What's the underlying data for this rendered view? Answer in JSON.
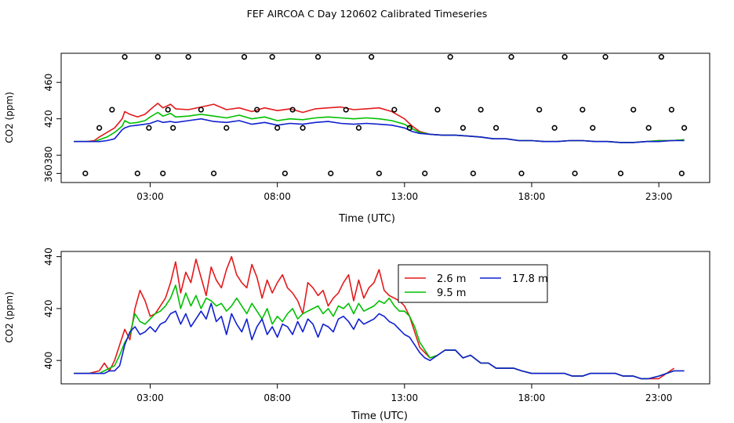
{
  "figure": {
    "title": "FEF AIRCOA C  Day 120602  Calibrated Timeseries"
  },
  "colors": {
    "s1": "#e41a1c",
    "s2": "#00c000",
    "s3": "#1020d0",
    "axis": "#000000"
  },
  "chart_data": [
    {
      "type": "line",
      "title": "",
      "xlabel": "Time (UTC)",
      "ylabel": "CO2 (ppm)",
      "xlim": [
        -0.5,
        25
      ],
      "ylim": [
        350,
        492
      ],
      "xticks": [
        3,
        8,
        13,
        18,
        23
      ],
      "xticklabels": [
        "03:00",
        "08:00",
        "13:00",
        "18:00",
        "23:00"
      ],
      "yticks": [
        360,
        380,
        420,
        460
      ],
      "yticklabels": [
        "360",
        "380",
        "420",
        "460"
      ],
      "grid": false,
      "legend": "none",
      "series": [
        {
          "color": "#e41a1c",
          "x": [
            0,
            0.5,
            0.8,
            1.0,
            1.3,
            1.6,
            1.9,
            2.0,
            2.2,
            2.5,
            2.8,
            3.0,
            3.3,
            3.5,
            3.8,
            4.0,
            4.5,
            5.0,
            5.5,
            6.0,
            6.5,
            7.0,
            7.5,
            8.0,
            8.5,
            9.0,
            9.5,
            10.0,
            10.5,
            11.0,
            11.5,
            12.0,
            12.5,
            13.0,
            13.3,
            13.6,
            14.0,
            14.5,
            15.0,
            15.5,
            16.0,
            16.5,
            17.0,
            17.5,
            18.0,
            18.5,
            19.0,
            19.5,
            20.0,
            20.5,
            21.0,
            21.5,
            22.0,
            22.5,
            23.0,
            23.5,
            24.0
          ],
          "y": [
            395,
            395,
            396,
            400,
            405,
            410,
            420,
            428,
            425,
            422,
            425,
            430,
            437,
            432,
            436,
            431,
            430,
            433,
            436,
            430,
            432,
            428,
            432,
            429,
            431,
            427,
            431,
            432,
            433,
            430,
            431,
            432,
            428,
            420,
            412,
            406,
            403,
            402,
            402,
            401,
            400,
            398,
            398,
            396,
            396,
            395,
            395,
            396,
            396,
            395,
            395,
            394,
            394,
            395,
            396,
            396,
            397
          ]
        },
        {
          "color": "#00c000",
          "x": [
            0,
            0.5,
            0.8,
            1.0,
            1.3,
            1.6,
            1.9,
            2.0,
            2.2,
            2.5,
            2.8,
            3.0,
            3.3,
            3.5,
            3.8,
            4.0,
            4.5,
            5.0,
            5.5,
            6.0,
            6.5,
            7.0,
            7.5,
            8.0,
            8.5,
            9.0,
            9.5,
            10.0,
            10.5,
            11.0,
            11.5,
            12.0,
            12.5,
            13.0,
            13.3,
            13.6,
            14.0,
            14.5,
            15.0,
            15.5,
            16.0,
            16.5,
            17.0,
            17.5,
            18.0,
            18.5,
            19.0,
            19.5,
            20.0,
            20.5,
            21.0,
            21.5,
            22.0,
            22.5,
            23.0,
            23.5,
            24.0
          ],
          "y": [
            395,
            395,
            395,
            397,
            400,
            405,
            412,
            418,
            415,
            416,
            418,
            422,
            427,
            423,
            426,
            422,
            423,
            425,
            423,
            421,
            424,
            420,
            422,
            418,
            420,
            419,
            421,
            422,
            421,
            420,
            421,
            420,
            418,
            414,
            409,
            405,
            403,
            402,
            402,
            401,
            400,
            398,
            398,
            396,
            396,
            395,
            395,
            396,
            396,
            395,
            395,
            394,
            394,
            395,
            396,
            396,
            397
          ]
        },
        {
          "color": "#1020d0",
          "x": [
            0,
            0.5,
            0.8,
            1.0,
            1.3,
            1.6,
            1.9,
            2.0,
            2.2,
            2.5,
            2.8,
            3.0,
            3.3,
            3.5,
            3.8,
            4.0,
            4.5,
            5.0,
            5.5,
            6.0,
            6.5,
            7.0,
            7.5,
            8.0,
            8.5,
            9.0,
            9.5,
            10.0,
            10.5,
            11.0,
            11.5,
            12.0,
            12.5,
            13.0,
            13.3,
            13.6,
            14.0,
            14.5,
            15.0,
            15.5,
            16.0,
            16.5,
            17.0,
            17.5,
            18.0,
            18.5,
            19.0,
            19.5,
            20.0,
            20.5,
            21.0,
            21.5,
            22.0,
            22.5,
            23.0,
            23.5,
            24.0
          ],
          "y": [
            395,
            395,
            395,
            395,
            396,
            398,
            408,
            410,
            412,
            413,
            414,
            415,
            418,
            416,
            417,
            416,
            418,
            420,
            417,
            416,
            418,
            414,
            416,
            413,
            415,
            414,
            416,
            417,
            415,
            414,
            415,
            414,
            413,
            410,
            406,
            404,
            403,
            402,
            402,
            401,
            400,
            398,
            398,
            396,
            396,
            395,
            395,
            396,
            396,
            395,
            395,
            394,
            394,
            395,
            395,
            396,
            396
          ]
        }
      ],
      "flag_points": {
        "x": [
          0.45,
          1.0,
          1.5,
          2.0,
          2.5,
          2.95,
          3.3,
          3.5,
          3.7,
          3.9,
          4.5,
          5.0,
          5.5,
          6.0,
          6.7,
          7.2,
          7.8,
          8.0,
          8.3,
          8.6,
          9.0,
          9.6,
          10.1,
          10.7,
          11.2,
          11.7,
          12.0,
          12.6,
          13.2,
          13.8,
          14.3,
          14.8,
          15.3,
          15.7,
          16.0,
          16.6,
          17.2,
          17.6,
          18.3,
          18.9,
          19.3,
          19.7,
          20.0,
          20.4,
          20.9,
          21.5,
          22.0,
          22.6,
          23.1,
          23.5,
          23.9,
          24.0
        ],
        "y": [
          360,
          410,
          430,
          488,
          360,
          410,
          488,
          360,
          430,
          410,
          488,
          430,
          360,
          410,
          488,
          430,
          488,
          410,
          360,
          430,
          410,
          488,
          360,
          430,
          410,
          488,
          360,
          430,
          410,
          360,
          430,
          488,
          410,
          360,
          430,
          410,
          488,
          360,
          430,
          410,
          488,
          360,
          430,
          410,
          488,
          360,
          430,
          410,
          488,
          430,
          360,
          410
        ]
      }
    },
    {
      "type": "line",
      "title": "",
      "xlabel": "Time (UTC)",
      "ylabel": "CO2 (ppm)",
      "xlim": [
        -0.5,
        25
      ],
      "ylim": [
        391,
        442
      ],
      "xticks": [
        3,
        8,
        13,
        18,
        23
      ],
      "xticklabels": [
        "03:00",
        "08:00",
        "13:00",
        "18:00",
        "23:00"
      ],
      "yticks": [
        400,
        420,
        440
      ],
      "yticklabels": [
        "400",
        "420",
        "440"
      ],
      "grid": false,
      "legend": "top-center",
      "series": [
        {
          "name": "2.6 m",
          "color": "#e41a1c",
          "x": [
            0,
            0.6,
            1.0,
            1.2,
            1.4,
            1.6,
            1.8,
            2.0,
            2.2,
            2.4,
            2.6,
            2.8,
            3.0,
            3.2,
            3.4,
            3.6,
            3.8,
            4.0,
            4.2,
            4.4,
            4.6,
            4.8,
            5.0,
            5.2,
            5.4,
            5.6,
            5.8,
            6.0,
            6.2,
            6.4,
            6.6,
            6.8,
            7.0,
            7.2,
            7.4,
            7.6,
            7.8,
            8.0,
            8.2,
            8.4,
            8.6,
            8.8,
            9.0,
            9.2,
            9.4,
            9.6,
            9.8,
            10.0,
            10.2,
            10.4,
            10.6,
            10.8,
            11.0,
            11.2,
            11.4,
            11.6,
            11.8,
            12.0,
            12.2,
            12.4,
            12.6,
            12.8,
            13.0,
            13.2,
            13.4,
            13.6,
            13.8,
            14.0,
            14.3,
            14.6,
            15.0,
            15.3,
            15.6,
            16.0,
            16.3,
            16.6,
            17.0,
            17.3,
            17.6,
            18.0,
            18.3,
            18.6,
            19.0,
            19.3,
            19.6,
            20.0,
            20.3,
            20.6,
            21.0,
            21.3,
            21.6,
            22.0,
            22.3,
            22.6,
            23.0,
            23.3,
            23.6
          ],
          "y": [
            395,
            395,
            396,
            399,
            396,
            400,
            406,
            412,
            408,
            420,
            427,
            423,
            417,
            418,
            421,
            424,
            430,
            438,
            426,
            434,
            430,
            439,
            432,
            425,
            436,
            431,
            428,
            435,
            440,
            433,
            430,
            428,
            437,
            432,
            424,
            431,
            426,
            430,
            433,
            428,
            426,
            423,
            418,
            430,
            428,
            425,
            427,
            421,
            424,
            426,
            430,
            433,
            423,
            431,
            424,
            428,
            430,
            435,
            427,
            425,
            424,
            423,
            421,
            417,
            411,
            405,
            403,
            401,
            402,
            404,
            404,
            401,
            402,
            399,
            399,
            397,
            397,
            397,
            396,
            395,
            395,
            395,
            395,
            395,
            394,
            394,
            395,
            395,
            395,
            395,
            394,
            394,
            393,
            393,
            393,
            395,
            397
          ]
        },
        {
          "name": "9.5 m",
          "color": "#00c000",
          "x": [
            0,
            0.6,
            1.0,
            1.2,
            1.4,
            1.6,
            1.8,
            2.0,
            2.2,
            2.4,
            2.6,
            2.8,
            3.0,
            3.2,
            3.4,
            3.6,
            3.8,
            4.0,
            4.2,
            4.4,
            4.6,
            4.8,
            5.0,
            5.2,
            5.4,
            5.6,
            5.8,
            6.0,
            6.2,
            6.4,
            6.6,
            6.8,
            7.0,
            7.2,
            7.4,
            7.6,
            7.8,
            8.0,
            8.2,
            8.4,
            8.6,
            8.8,
            9.0,
            9.2,
            9.4,
            9.6,
            9.8,
            10.0,
            10.2,
            10.4,
            10.6,
            10.8,
            11.0,
            11.2,
            11.4,
            11.6,
            11.8,
            12.0,
            12.2,
            12.4,
            12.6,
            12.8,
            13.0,
            13.2,
            13.4,
            13.6,
            13.8,
            14.0,
            14.3,
            14.6,
            15.0,
            15.3,
            15.6,
            16.0,
            16.3,
            16.6,
            17.0,
            17.3,
            17.6,
            18.0,
            18.3,
            18.6,
            19.0,
            19.3,
            19.6,
            20.0,
            20.3,
            20.6,
            21.0,
            21.3,
            21.6,
            22.0,
            22.3,
            22.6,
            23.0,
            23.3,
            23.6
          ],
          "y": [
            395,
            395,
            395,
            396,
            397,
            398,
            402,
            407,
            410,
            418,
            415,
            414,
            416,
            418,
            419,
            421,
            424,
            429,
            420,
            426,
            421,
            425,
            420,
            424,
            423,
            421,
            422,
            419,
            421,
            424,
            421,
            418,
            422,
            419,
            416,
            420,
            414,
            417,
            415,
            418,
            420,
            416,
            418,
            419,
            420,
            421,
            418,
            420,
            417,
            421,
            420,
            422,
            418,
            422,
            419,
            420,
            421,
            423,
            422,
            424,
            421,
            419,
            419,
            417,
            413,
            407,
            404,
            401,
            402,
            404,
            404,
            401,
            402,
            399,
            399,
            397,
            397,
            397,
            396,
            395,
            395,
            395,
            395,
            395,
            394,
            394,
            395,
            395,
            395,
            395,
            394,
            394,
            393,
            393,
            394,
            395,
            396
          ]
        },
        {
          "name": "17.8 m",
          "color": "#1020d0",
          "x": [
            0,
            0.6,
            1.0,
            1.2,
            1.4,
            1.6,
            1.8,
            2.0,
            2.2,
            2.4,
            2.6,
            2.8,
            3.0,
            3.2,
            3.4,
            3.6,
            3.8,
            4.0,
            4.2,
            4.4,
            4.6,
            4.8,
            5.0,
            5.2,
            5.4,
            5.6,
            5.8,
            6.0,
            6.2,
            6.4,
            6.6,
            6.8,
            7.0,
            7.2,
            7.4,
            7.6,
            7.8,
            8.0,
            8.2,
            8.4,
            8.6,
            8.8,
            9.0,
            9.2,
            9.4,
            9.6,
            9.8,
            10.0,
            10.2,
            10.4,
            10.6,
            10.8,
            11.0,
            11.2,
            11.4,
            11.6,
            11.8,
            12.0,
            12.2,
            12.4,
            12.6,
            12.8,
            13.0,
            13.2,
            13.4,
            13.6,
            13.8,
            14.0,
            14.3,
            14.6,
            15.0,
            15.3,
            15.6,
            16.0,
            16.3,
            16.6,
            17.0,
            17.3,
            17.6,
            18.0,
            18.3,
            18.6,
            19.0,
            19.3,
            19.6,
            20.0,
            20.3,
            20.6,
            21.0,
            21.3,
            21.6,
            22.0,
            22.3,
            22.6,
            23.0,
            23.3,
            23.6,
            24.0
          ],
          "y": [
            395,
            395,
            395,
            395,
            396,
            396,
            398,
            406,
            411,
            413,
            410,
            411,
            413,
            411,
            414,
            415,
            418,
            419,
            414,
            418,
            413,
            416,
            419,
            416,
            422,
            415,
            417,
            410,
            418,
            414,
            411,
            416,
            408,
            413,
            416,
            410,
            413,
            409,
            414,
            413,
            410,
            415,
            411,
            416,
            414,
            409,
            414,
            413,
            411,
            416,
            417,
            415,
            412,
            416,
            414,
            415,
            416,
            418,
            417,
            415,
            414,
            412,
            410,
            409,
            406,
            403,
            401,
            400,
            402,
            404,
            404,
            401,
            402,
            399,
            399,
            397,
            397,
            397,
            396,
            395,
            395,
            395,
            395,
            395,
            394,
            394,
            395,
            395,
            395,
            395,
            394,
            394,
            393,
            393,
            394,
            395,
            396,
            396
          ]
        }
      ]
    }
  ]
}
